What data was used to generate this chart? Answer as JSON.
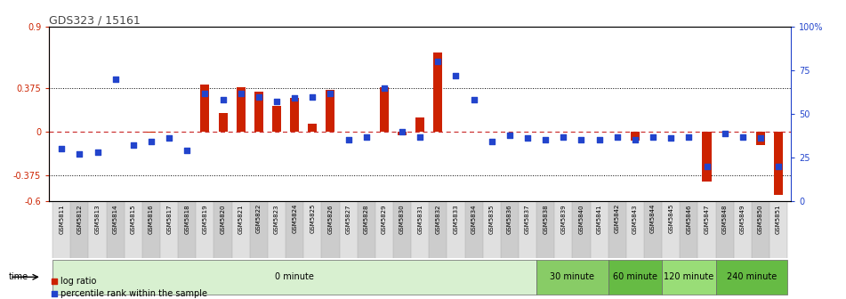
{
  "title": "GDS323 / 15161",
  "samples": [
    "GSM5811",
    "GSM5812",
    "GSM5813",
    "GSM5814",
    "GSM5815",
    "GSM5816",
    "GSM5817",
    "GSM5818",
    "GSM5819",
    "GSM5820",
    "GSM5821",
    "GSM5822",
    "GSM5823",
    "GSM5824",
    "GSM5825",
    "GSM5826",
    "GSM5827",
    "GSM5828",
    "GSM5829",
    "GSM5830",
    "GSM5831",
    "GSM5832",
    "GSM5833",
    "GSM5834",
    "GSM5835",
    "GSM5836",
    "GSM5837",
    "GSM5838",
    "GSM5839",
    "GSM5840",
    "GSM5841",
    "GSM5842",
    "GSM5843",
    "GSM5844",
    "GSM5845",
    "GSM5846",
    "GSM5847",
    "GSM5848",
    "GSM5849",
    "GSM5850",
    "GSM5851"
  ],
  "log_ratio": [
    0.0,
    0.0,
    0.0,
    0.0,
    0.0,
    -0.01,
    0.0,
    0.0,
    0.4,
    0.16,
    0.38,
    0.34,
    0.22,
    0.29,
    0.07,
    0.36,
    0.0,
    0.0,
    0.38,
    -0.03,
    0.12,
    0.68,
    0.0,
    0.0,
    0.0,
    0.0,
    0.0,
    0.0,
    0.0,
    0.0,
    0.0,
    0.0,
    -0.08,
    0.0,
    0.0,
    0.0,
    -0.43,
    0.0,
    0.0,
    -0.12,
    -0.55
  ],
  "percentile_rank": [
    30,
    27,
    28,
    70,
    32,
    34,
    36,
    29,
    62,
    58,
    62,
    60,
    57,
    59,
    60,
    62,
    35,
    37,
    65,
    40,
    37,
    80,
    72,
    58,
    34,
    38,
    36,
    35,
    37,
    35,
    35,
    37,
    35,
    37,
    36,
    37,
    20,
    39,
    37,
    36,
    20
  ],
  "time_groups": [
    {
      "label": "0 minute",
      "start": 0,
      "end": 27,
      "color": "#d8f0d0"
    },
    {
      "label": "30 minute",
      "start": 27,
      "end": 31,
      "color": "#88cc66"
    },
    {
      "label": "60 minute",
      "start": 31,
      "end": 34,
      "color": "#66bb44"
    },
    {
      "label": "120 minute",
      "start": 34,
      "end": 37,
      "color": "#99dd77"
    },
    {
      "label": "240 minute",
      "start": 37,
      "end": 41,
      "color": "#66bb44"
    }
  ],
  "ylim": [
    -0.6,
    0.9
  ],
  "yticks": [
    -0.6,
    -0.375,
    0.0,
    0.375,
    0.9
  ],
  "ytick_labels": [
    "-0.6",
    "-0.375",
    "0",
    "0.375",
    "0.9"
  ],
  "hlines": [
    -0.375,
    0.375
  ],
  "right_yticks": [
    0,
    25,
    50,
    75,
    100
  ],
  "right_ytick_labels": [
    "0",
    "25",
    "50",
    "75",
    "100%"
  ],
  "bar_color": "#cc2200",
  "dot_color": "#2244cc",
  "zeroline_color": "#cc3333",
  "title_color": "#444444",
  "axis_label_color": "#cc2200",
  "right_axis_color": "#2244cc",
  "bg_color": "#ffffff",
  "sample_bg_even": "#e0e0e0",
  "sample_bg_odd": "#cccccc"
}
